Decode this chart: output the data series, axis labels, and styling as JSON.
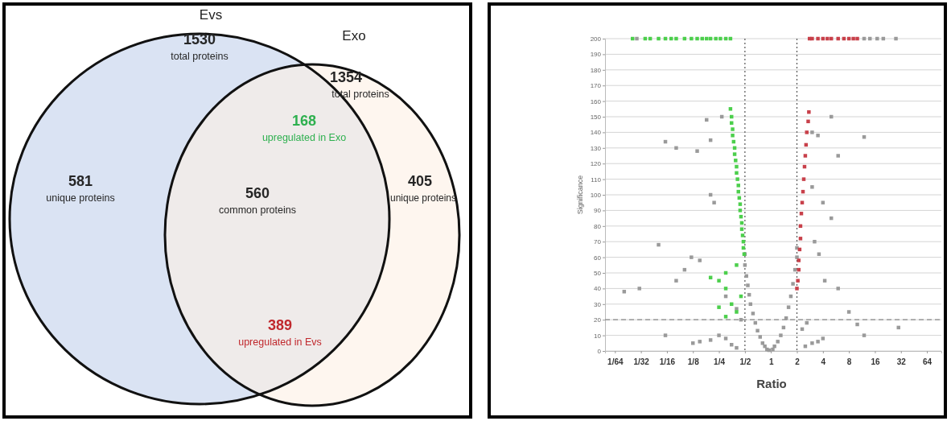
{
  "chart_data": [
    {
      "type": "other",
      "colors": [
        "#dae3f3",
        "#fdf0e4"
      ],
      "annotations": [
        "Evs",
        "Exo",
        "1530",
        "total proteins",
        "1354",
        "total proteins",
        "168",
        "upregulated in Exo",
        "581",
        "unique proteins",
        "560",
        "common proteins",
        "405",
        "unique proteins",
        "389",
        "upregulated in Evs"
      ]
    },
    {
      "type": "scatter",
      "xlabel": "Ratio",
      "ylabel": "Significance",
      "log": "x",
      "grid": "y",
      "marker": "square",
      "xlim": [
        0.012,
        94
      ],
      "ylim": [
        0,
        200
      ],
      "xticks": [
        {
          "value": 0.015625,
          "label": "1/64"
        },
        {
          "value": 0.03125,
          "label": "1/32"
        },
        {
          "value": 0.0625,
          "label": "1/16"
        },
        {
          "value": 0.125,
          "label": "1/8"
        },
        {
          "value": 0.25,
          "label": "1/4"
        },
        {
          "value": 0.5,
          "label": "1/2"
        },
        1,
        2,
        4,
        8,
        16,
        32,
        64
      ],
      "yticks": [
        0,
        10,
        20,
        30,
        40,
        50,
        60,
        70,
        80,
        90,
        100,
        110,
        120,
        130,
        140,
        150,
        160,
        170,
        180,
        190,
        200
      ],
      "ref_lines": [
        {
          "axis": "x",
          "value": 0.5,
          "color": "#555555",
          "line_style": "dotted"
        },
        {
          "axis": "x",
          "value": 2,
          "color": "#555555",
          "line_style": "dotted"
        },
        {
          "axis": "y",
          "value": 20,
          "color": "#888888",
          "line_style": "dashed"
        }
      ],
      "series": [
        {
          "color": "#9a9a9a",
          "x": [
            0.5,
            0.5,
            0.52,
            0.54,
            0.56,
            0.58,
            0.62,
            0.66,
            0.7,
            0.75,
            0.8,
            0.85,
            0.9,
            0.95,
            1.05,
            1.1,
            1.2,
            1.3,
            1.4,
            1.5,
            1.6,
            1.7,
            1.8,
            1.9,
            2,
            2,
            0.3,
            0.25,
            0.2,
            0.15,
            0.35,
            0.4,
            2.5,
            3,
            3.5,
            4,
            2.3,
            2.6,
            0.45,
            0.4,
            0.3,
            0.08,
            0.1,
            0.15,
            0.12,
            0.05,
            0.03,
            0.02,
            0.06,
            0.2,
            0.22,
            0.27,
            0.18,
            0.2,
            0.06,
            0.08,
            0.14,
            3,
            3.5,
            5,
            12,
            4,
            5,
            6,
            3.2,
            3.6,
            4.2,
            6,
            8,
            10,
            3,
            0.125,
            12,
            30,
            0.028,
            12,
            14,
            17,
            20,
            28
          ],
          "values": [
            62,
            55,
            48,
            42,
            36,
            30,
            24,
            18,
            13,
            9,
            5,
            3,
            1,
            0.5,
            1,
            3,
            6,
            10,
            15,
            21,
            28,
            35,
            43,
            52,
            60,
            66,
            8,
            10,
            7,
            6,
            4,
            2,
            3,
            5,
            6,
            8,
            14,
            18,
            20,
            27,
            35,
            45,
            52,
            58,
            60,
            68,
            40,
            38,
            10,
            100,
            95,
            150,
            148,
            135,
            134,
            130,
            128,
            140,
            138,
            150,
            137,
            95,
            85,
            125,
            70,
            62,
            45,
            40,
            25,
            17,
            105,
            5,
            10,
            15,
            200,
            200,
            200,
            200,
            200,
            200
          ]
        },
        {
          "color": "#4ccf4c",
          "x": [
            0.34,
            0.35,
            0.35,
            0.36,
            0.36,
            0.37,
            0.38,
            0.38,
            0.39,
            0.4,
            0.4,
            0.41,
            0.42,
            0.42,
            0.43,
            0.44,
            0.44,
            0.45,
            0.46,
            0.46,
            0.47,
            0.48,
            0.48,
            0.49,
            0.4,
            0.3,
            0.25,
            0.2,
            0.3,
            0.45,
            0.35,
            0.25,
            0.3,
            0.4,
            0.025,
            0.035,
            0.04,
            0.05,
            0.06,
            0.07,
            0.08,
            0.1,
            0.12,
            0.14,
            0.16,
            0.18,
            0.2,
            0.23,
            0.26,
            0.3,
            0.34
          ],
          "values": [
            155,
            150,
            146,
            142,
            138,
            134,
            130,
            126,
            122,
            118,
            114,
            110,
            106,
            102,
            98,
            94,
            90,
            86,
            82,
            78,
            74,
            70,
            66,
            62,
            55,
            50,
            45,
            47,
            40,
            35,
            30,
            28,
            22,
            25,
            200,
            200,
            200,
            200,
            200,
            200,
            200,
            200,
            200,
            200,
            200,
            200,
            200,
            200,
            200,
            200,
            200
          ]
        },
        {
          "color": "#c8404a",
          "x": [
            2,
            2.05,
            2.1,
            2.1,
            2.15,
            2.2,
            2.2,
            2.25,
            2.3,
            2.35,
            2.4,
            2.45,
            2.5,
            2.55,
            2.6,
            2.7,
            2.75,
            2.8,
            3,
            3.5,
            4,
            4.5,
            5,
            6,
            7,
            8,
            9,
            10
          ],
          "values": [
            40,
            45,
            52,
            58,
            65,
            72,
            80,
            88,
            95,
            102,
            110,
            118,
            125,
            132,
            140,
            147,
            153,
            200,
            200,
            200,
            200,
            200,
            200,
            200,
            200,
            200,
            200,
            200
          ]
        }
      ]
    }
  ]
}
